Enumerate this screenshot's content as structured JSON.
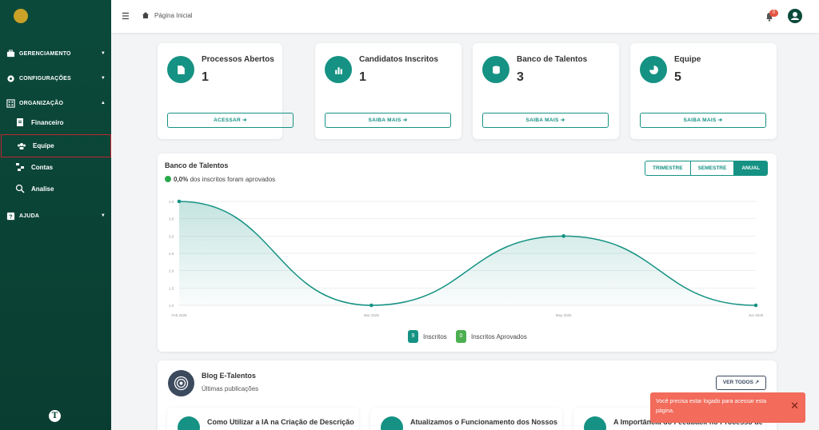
{
  "sidebar": {
    "items": [
      {
        "label": "GERENCIAMENTO"
      },
      {
        "label": "CONFIGURAÇÕES"
      },
      {
        "label": "ORGANIZAÇÃO"
      },
      {
        "label": "AJUDA"
      }
    ],
    "sub_items": [
      {
        "label": "Financeiro"
      },
      {
        "label": "Equipe"
      },
      {
        "label": "Contas"
      },
      {
        "label": "Analise"
      }
    ]
  },
  "header": {
    "breadcrumb": "Página Inicial",
    "notification_count": "0"
  },
  "stats": [
    {
      "title": "Processos Abertos",
      "value": "1",
      "button": "ACESSAR",
      "icon": "file-icon"
    },
    {
      "title": "Candidatos Inscritos",
      "value": "1",
      "button": "SAIBA MAIS",
      "icon": "bar-chart-icon"
    },
    {
      "title": "Banco de Talentos",
      "value": "3",
      "button": "SAIBA MAIS",
      "icon": "database-icon"
    },
    {
      "title": "Equipe",
      "value": "5",
      "button": "SAIBA MAIS",
      "icon": "pie-chart-icon"
    }
  ],
  "chart_panel": {
    "title": "Banco de Talentos",
    "subtitle_value": "0,0%",
    "subtitle_text": " dos inscritos foram aprovados",
    "tabs": [
      "TRIMESTRE",
      "SEMESTRE",
      "ANUAL"
    ],
    "active_tab": "ANUAL",
    "legend": [
      {
        "count": "9",
        "label": "Inscritos",
        "color": "#159283"
      },
      {
        "count": "0",
        "label": "Inscritos Aprovados",
        "color": "#4caf50"
      }
    ]
  },
  "chart_data": {
    "type": "area",
    "x": [
      "Feb 2025",
      "Mar 2025",
      "May 2025",
      "Jun 2025"
    ],
    "series": [
      {
        "values": [
          4.0,
          1.0,
          3.0,
          1.0
        ]
      }
    ],
    "yticks": [
      "4.0",
      "3.5",
      "3.0",
      "2.5",
      "2.0",
      "1.5",
      "1.0"
    ],
    "ylim": [
      1.0,
      4.0
    ],
    "grid": true
  },
  "blog": {
    "title": "Blog E-Talentos",
    "subtitle": "Últimas publicações",
    "button": "VER TODOS",
    "posts": [
      {
        "title": "Como Utilizar a IA na Criação de Descrição"
      },
      {
        "title": "Atualizamos o Funcionamento dos Nossos"
      },
      {
        "title": "A Importância do Feedback no Processo de"
      }
    ]
  },
  "toast": {
    "message": "Você precisa estar logado para acessar esta página."
  },
  "colors": {
    "sidebar": "#0b4a3b",
    "accent": "#159283",
    "toast": "#f26b5b"
  }
}
